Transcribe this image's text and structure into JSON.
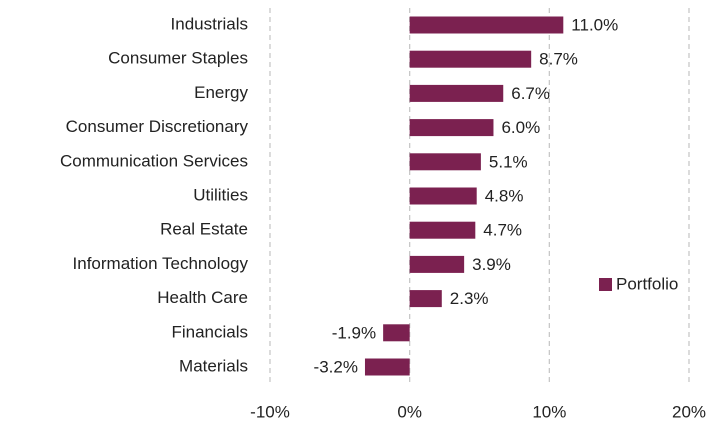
{
  "chart_data": {
    "type": "bar",
    "orientation": "horizontal",
    "categories": [
      "Industrials",
      "Consumer Staples",
      "Energy",
      "Consumer Discretionary",
      "Communication Services",
      "Utilities",
      "Real Estate",
      "Information Technology",
      "Health Care",
      "Financials",
      "Materials"
    ],
    "series": [
      {
        "name": "Portfolio",
        "color": "#7b2150",
        "values": [
          11.0,
          8.7,
          6.7,
          6.0,
          5.1,
          4.8,
          4.7,
          3.9,
          2.3,
          -1.9,
          -3.2
        ],
        "value_labels": [
          "11.0%",
          "8.7%",
          "6.7%",
          "6.0%",
          "5.1%",
          "4.8%",
          "4.7%",
          "3.9%",
          "2.3%",
          "-1.9%",
          "-3.2%"
        ]
      }
    ],
    "xlim": [
      -10,
      20
    ],
    "xticks": [
      {
        "value": -10,
        "label": "-10%"
      },
      {
        "value": 0,
        "label": "0%"
      },
      {
        "value": 10,
        "label": "10%"
      },
      {
        "value": 20,
        "label": "20%"
      }
    ],
    "grid": true,
    "legend": "right"
  }
}
